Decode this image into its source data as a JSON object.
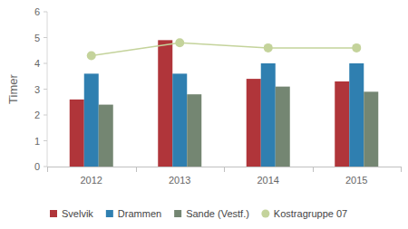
{
  "chart_data": {
    "type": "bar",
    "y_label": "Timer",
    "categories": [
      "2012",
      "2013",
      "2014",
      "2015"
    ],
    "series": [
      {
        "name": "Svelvik",
        "color": "#b0353a",
        "type": "bar",
        "values": [
          2.6,
          4.9,
          3.4,
          3.3
        ]
      },
      {
        "name": "Drammen",
        "color": "#2f7fb0",
        "type": "bar",
        "values": [
          3.6,
          3.6,
          4.0,
          4.0
        ]
      },
      {
        "name": "Sande (Vestf.)",
        "color": "#748672",
        "type": "bar",
        "values": [
          2.4,
          2.8,
          3.1,
          2.9
        ]
      },
      {
        "name": "Kostragruppe 07",
        "color": "#c4d39b",
        "type": "line",
        "marker": "circle",
        "values": [
          4.3,
          4.8,
          4.6,
          4.6
        ]
      }
    ],
    "ylim": [
      0,
      6
    ],
    "yticks": [
      0,
      1,
      2,
      3,
      4,
      5,
      6
    ],
    "grid": false,
    "legend": "bottom"
  }
}
